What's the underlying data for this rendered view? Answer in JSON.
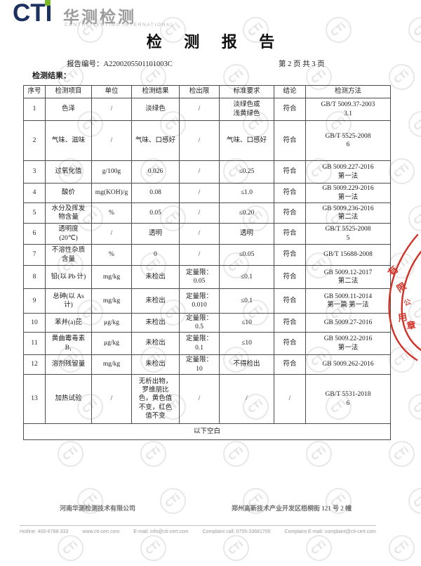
{
  "logo": {
    "cti": "CTI",
    "cn": "华测检测",
    "en": "CENTRE TESTING INTERNATIONAL"
  },
  "title": "检 测 报 告",
  "meta": {
    "report_no_label": "报告编号：",
    "report_no": "A2200205501101003C",
    "page_info": "第 2 页 共 3 页"
  },
  "section_label": "检测结果：",
  "table": {
    "headers": [
      "序号",
      "检测项目",
      "单位",
      "检测结果",
      "检出限",
      "标准要求",
      "结论",
      "检测方法"
    ],
    "rows": [
      [
        "1",
        "色泽",
        "/",
        "淡绿色",
        "/",
        "淡绿色或\n浅黄绿色",
        "符合",
        "GB/T 5009.37-2003\n3.1"
      ],
      [
        "2",
        "气味、滋味",
        "/",
        "气味、口感好",
        "/",
        "气味、口感好",
        "符合",
        "GB/T 5525-2008\n6"
      ],
      [
        "3",
        "过氧化值",
        "g/100g",
        "0.026",
        "/",
        "≤0.25",
        "符合",
        "GB 5009.227-2016\n第一法"
      ],
      [
        "4",
        "酸价",
        "mg(KOH)/g",
        "0.08",
        "/",
        "≤1.0",
        "符合",
        "GB 5009.229-2016\n第一法"
      ],
      [
        "5",
        "水分及挥发\n物含量",
        "%",
        "0.05",
        "/",
        "≤0.20",
        "符合",
        "GB 5009.236-2016\n第二法"
      ],
      [
        "6",
        "透明度\n(20℃)",
        "/",
        "透明",
        "/",
        "透明",
        "符合",
        "GB/T 5525-2008\n5"
      ],
      [
        "7",
        "不溶性杂质\n含量",
        "%",
        "0",
        "/",
        "≤0.05",
        "符合",
        "GB/T 15688-2008"
      ],
      [
        "8",
        "铅(以 Pb 计)",
        "mg/kg",
        "未检出",
        "定量限：\n0.05",
        "≤0.1",
        "符合",
        "GB 5009.12-2017\n第二法"
      ],
      [
        "9",
        "总砷(以 As\n计)",
        "mg/kg",
        "未检出",
        "定量限：\n0.010",
        "≤0.1",
        "符合",
        "GB 5009.11-2014\n第一篇 第一法"
      ],
      [
        "10",
        "苯并(a)芘",
        "μg/kg",
        "未检出",
        "定量限：\n0.5",
        "≤10",
        "符合",
        "GB 5009.27-2016"
      ],
      [
        "11",
        "黄曲霉毒素\nB₁",
        "μg/kg",
        "未检出",
        "定量限：\n0.1",
        "≤10",
        "符合",
        "GB 5009.22-2016\n第一法"
      ],
      [
        "12",
        "溶剂残留量",
        "mg/kg",
        "未检出",
        "定量限：\n10",
        "不得检出",
        "符合",
        "GB 5009.262-2016"
      ],
      [
        "13",
        "加热试验",
        "/",
        "无析出物，\n罗维朋比\n色，黄色值\n不变，红色\n值不变",
        "/",
        "/",
        "/",
        "GB/T 5531-2018\n6"
      ]
    ],
    "blank_row": "以下空白"
  },
  "stamp": {
    "c1": "有",
    "c2": "限",
    "c3": "公",
    "c4": "用",
    "c5": "章",
    "color": "#d23128"
  },
  "watermark": {
    "glyph": "CTi"
  },
  "footer": {
    "company": "河南华测检测技术有限公司",
    "address": "郑州高新技术产业开发区梧桐街 121 号 2 幢",
    "contacts": [
      "Hotline: 400-6788-333",
      "www.cti-cert.com",
      "E-mail: info@cti-cert.com",
      "Complaint call: 0755-33681700",
      "Complaint E-mail: complaint@cti-cert.com"
    ]
  }
}
